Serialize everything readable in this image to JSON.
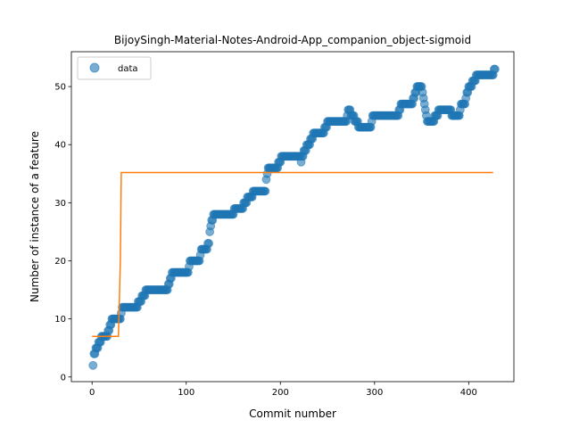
{
  "chart_data": {
    "type": "scatter",
    "title": "BijoySingh-Material-Notes-Android-App_companion_object-sigmoid",
    "xlabel": "Commit number",
    "ylabel": "Number of instance of a feature",
    "xlim": [
      -22,
      448
    ],
    "ylim": [
      -0.8,
      56
    ],
    "x_ticks": [
      0,
      100,
      200,
      300,
      400
    ],
    "y_ticks": [
      0,
      10,
      20,
      30,
      40,
      50
    ],
    "legend": {
      "placement": "top-left",
      "entries": [
        "data"
      ]
    },
    "colors": {
      "data": "#1f77b4",
      "fit": "#ff7f0e"
    },
    "series": [
      {
        "name": "data",
        "kind": "scatter",
        "anchors": [
          [
            1,
            2
          ],
          [
            2,
            4
          ],
          [
            5,
            5
          ],
          [
            8,
            6
          ],
          [
            12,
            7
          ],
          [
            16,
            7
          ],
          [
            18,
            8
          ],
          [
            20,
            9
          ],
          [
            22,
            10
          ],
          [
            30,
            10
          ],
          [
            32,
            12
          ],
          [
            48,
            12
          ],
          [
            50,
            13
          ],
          [
            55,
            14
          ],
          [
            58,
            15
          ],
          [
            80,
            15
          ],
          [
            82,
            16
          ],
          [
            85,
            18
          ],
          [
            102,
            18
          ],
          [
            104,
            20
          ],
          [
            114,
            20
          ],
          [
            116,
            22
          ],
          [
            122,
            22
          ],
          [
            124,
            23
          ],
          [
            126,
            26
          ],
          [
            128,
            27
          ],
          [
            130,
            28
          ],
          [
            150,
            28
          ],
          [
            152,
            29
          ],
          [
            160,
            29
          ],
          [
            162,
            30
          ],
          [
            168,
            31
          ],
          [
            174,
            32
          ],
          [
            184,
            32
          ],
          [
            186,
            35
          ],
          [
            188,
            36
          ],
          [
            196,
            36
          ],
          [
            200,
            37
          ],
          [
            202,
            38
          ],
          [
            220,
            38
          ],
          [
            222,
            37
          ],
          [
            226,
            39
          ],
          [
            230,
            40
          ],
          [
            234,
            41
          ],
          [
            236,
            42
          ],
          [
            245,
            42
          ],
          [
            248,
            43
          ],
          [
            252,
            44
          ],
          [
            270,
            44
          ],
          [
            272,
            46
          ],
          [
            276,
            45
          ],
          [
            280,
            44
          ],
          [
            284,
            43
          ],
          [
            296,
            43
          ],
          [
            298,
            45
          ],
          [
            325,
            45
          ],
          [
            328,
            47
          ],
          [
            340,
            47
          ],
          [
            344,
            49
          ],
          [
            346,
            50
          ],
          [
            350,
            50
          ],
          [
            352,
            48
          ],
          [
            354,
            46
          ],
          [
            356,
            44
          ],
          [
            362,
            44
          ],
          [
            366,
            45
          ],
          [
            370,
            46
          ],
          [
            380,
            46
          ],
          [
            382,
            45
          ],
          [
            390,
            45
          ],
          [
            392,
            47
          ],
          [
            396,
            47
          ],
          [
            398,
            49
          ],
          [
            402,
            50
          ],
          [
            406,
            51
          ],
          [
            410,
            52
          ],
          [
            426,
            52
          ],
          [
            428,
            53
          ]
        ]
      },
      {
        "name": "fit",
        "kind": "line",
        "points": [
          [
            0,
            7
          ],
          [
            28,
            7
          ],
          [
            30,
            20
          ],
          [
            31,
            35.2
          ],
          [
            426,
            35.2
          ]
        ]
      }
    ]
  }
}
